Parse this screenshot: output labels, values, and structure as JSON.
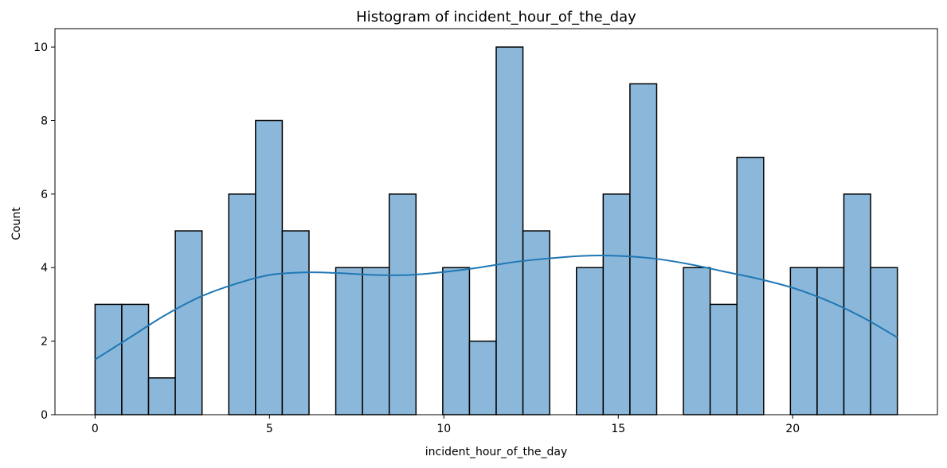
{
  "chart_data": {
    "type": "bar",
    "title": "Histogram of incident_hour_of_the_day",
    "xlabel": "incident_hour_of_the_day",
    "ylabel": "Count",
    "xlim": [
      -1.15,
      24.15
    ],
    "ylim": [
      0,
      10.5
    ],
    "x_ticks": [
      0,
      5,
      10,
      15,
      20
    ],
    "y_ticks": [
      0,
      2,
      4,
      6,
      8,
      10
    ],
    "bin_start": 0,
    "bin_width": 0.7667,
    "values": [
      3,
      3,
      1,
      5,
      0,
      6,
      8,
      5,
      0,
      4,
      4,
      6,
      0,
      4,
      2,
      10,
      5,
      0,
      4,
      6,
      9,
      0,
      4,
      3,
      7,
      0,
      4,
      4,
      6,
      4
    ],
    "kde": {
      "x": [
        0,
        1,
        2,
        3,
        4,
        5,
        6,
        7,
        8,
        9,
        10,
        11,
        12,
        13,
        14,
        15,
        16,
        17,
        18,
        19,
        20,
        21,
        22,
        23
      ],
      "y": [
        1.5,
        2.1,
        2.7,
        3.2,
        3.55,
        3.8,
        3.87,
        3.85,
        3.8,
        3.8,
        3.88,
        4.0,
        4.15,
        4.25,
        4.32,
        4.32,
        4.25,
        4.1,
        3.9,
        3.7,
        3.45,
        3.1,
        2.65,
        2.1
      ]
    },
    "grid": false,
    "legend": "none",
    "colors": {
      "bar_fill": "#8bb8da",
      "bar_edge": "#000000",
      "kde_line": "#1f77b4"
    }
  }
}
